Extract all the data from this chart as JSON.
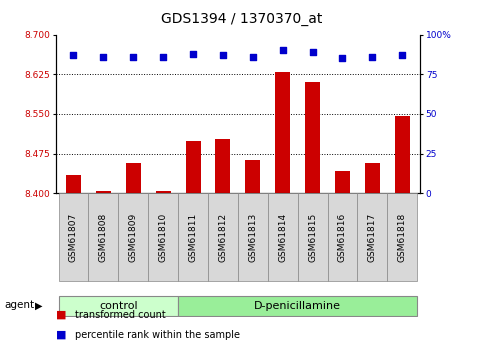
{
  "title": "GDS1394 / 1370370_at",
  "samples": [
    "GSM61807",
    "GSM61808",
    "GSM61809",
    "GSM61810",
    "GSM61811",
    "GSM61812",
    "GSM61813",
    "GSM61814",
    "GSM61815",
    "GSM61816",
    "GSM61817",
    "GSM61818"
  ],
  "bar_values": [
    8.435,
    8.405,
    8.458,
    8.405,
    8.498,
    8.502,
    8.462,
    8.63,
    8.61,
    8.442,
    8.458,
    8.545
  ],
  "percentile_values": [
    87,
    86,
    86,
    86,
    88,
    87,
    86,
    90,
    89,
    85,
    86,
    87
  ],
  "bar_color": "#cc0000",
  "percentile_color": "#0000cc",
  "ylim_left": [
    8.4,
    8.7
  ],
  "ylim_right": [
    0,
    100
  ],
  "yticks_left": [
    8.4,
    8.475,
    8.55,
    8.625,
    8.7
  ],
  "yticks_right": [
    0,
    25,
    50,
    75,
    100
  ],
  "ytick_labels_right": [
    "0",
    "25",
    "50",
    "75",
    "100%"
  ],
  "grid_lines": [
    8.475,
    8.55,
    8.625
  ],
  "n_control": 4,
  "n_treatment": 8,
  "control_label": "control",
  "treatment_label": "D-penicillamine",
  "agent_label": "agent",
  "legend_bar_label": "transformed count",
  "legend_dot_label": "percentile rank within the sample",
  "control_bg": "#ccffcc",
  "treatment_bg": "#99ee99",
  "sample_bg": "#d8d8d8",
  "title_fontsize": 10,
  "tick_fontsize": 6.5,
  "label_fontsize": 8,
  "bar_width": 0.5
}
